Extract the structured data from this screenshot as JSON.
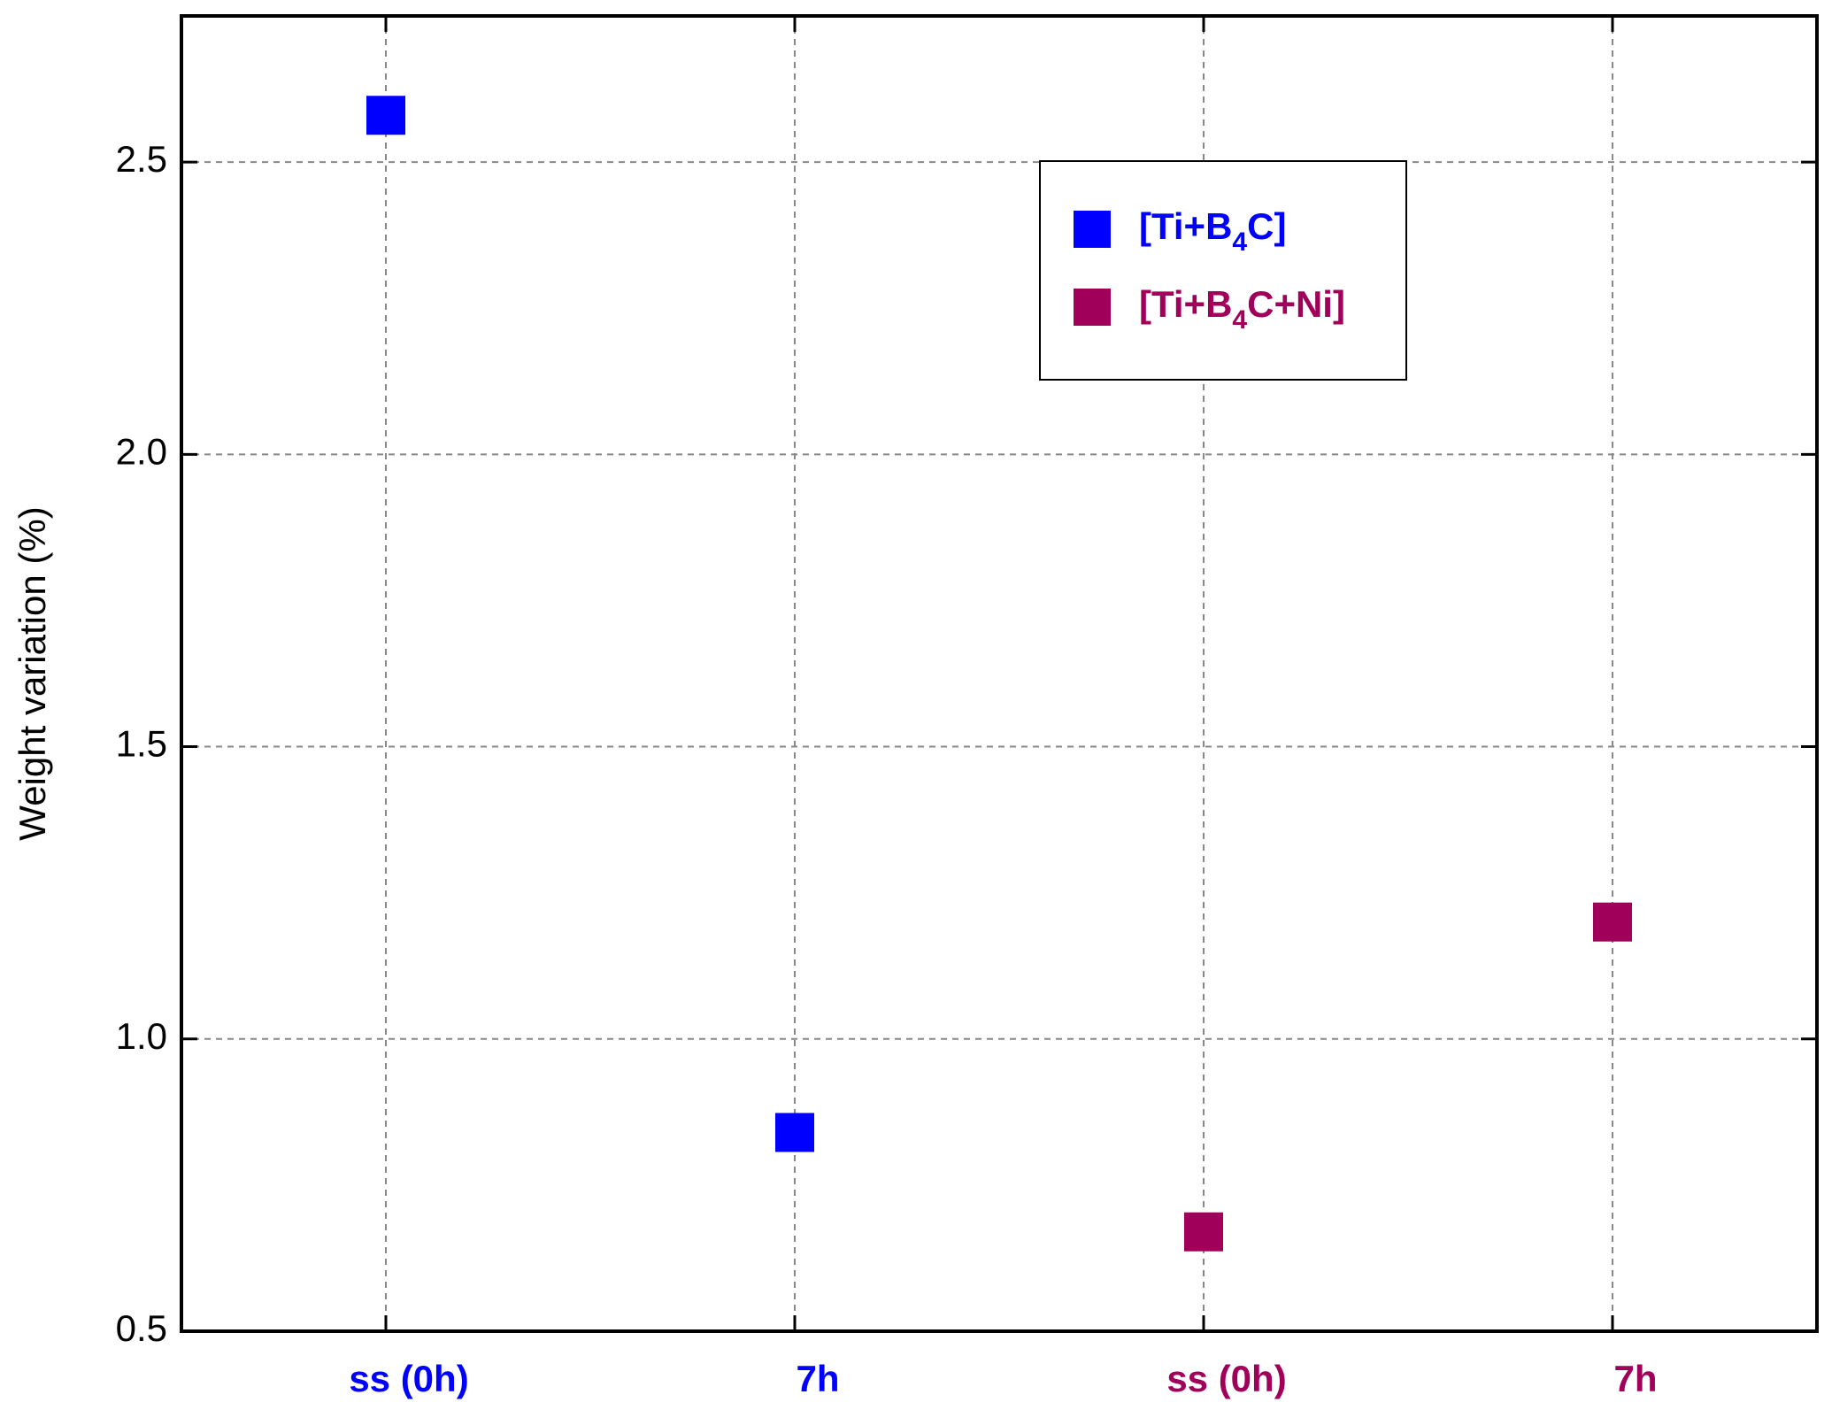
{
  "chart_data": {
    "type": "scatter",
    "y_label": "Weight variation (%)",
    "categories": [
      "ss (0h)",
      "7h",
      "ss (0h)",
      "7h"
    ],
    "category_colors": [
      "#0000ff",
      "#0000ff",
      "#a0005a",
      "#a0005a"
    ],
    "series": [
      {
        "name": "[Ti+B4C]",
        "color": "#0000ff",
        "values": [
          2.58,
          0.84,
          null,
          null
        ]
      },
      {
        "name": "[Ti+B4C+Ni]",
        "color": "#a0005a",
        "values": [
          null,
          null,
          0.67,
          1.2
        ]
      }
    ],
    "ylim": [
      0.5,
      2.75
    ],
    "yticks": [
      0.5,
      {
        "value": 1,
        "label": "1.0"
      },
      1.5,
      {
        "value": 2,
        "label": "2.0"
      },
      2.5
    ],
    "grid": true,
    "legend": "upper right"
  }
}
